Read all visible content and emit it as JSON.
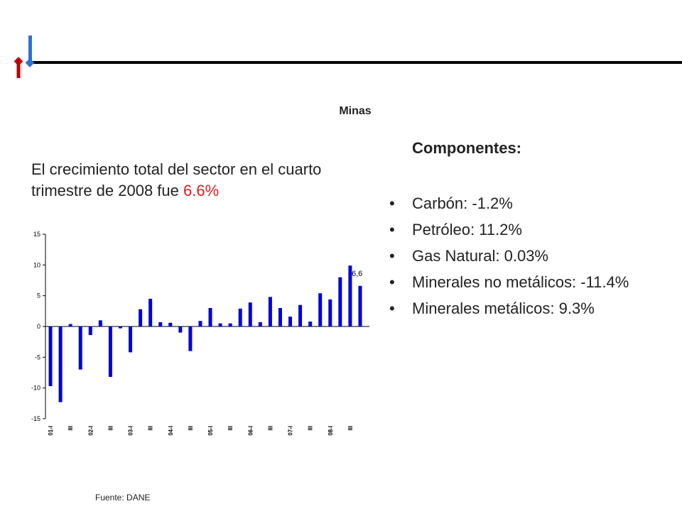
{
  "header": {
    "title": "Minas"
  },
  "headline": {
    "text": "El crecimiento total del sector en el cuarto trimestre de 2008 fue ",
    "value": "6.6%"
  },
  "components": {
    "title": "Componentes:",
    "items": [
      {
        "label": "Carbón: -1.2%"
      },
      {
        "label": "Petróleo: 11.2%"
      },
      {
        "label": "Gas Natural: 0.03%"
      },
      {
        "label": "Minerales no metálicos: -11.4%"
      },
      {
        "label": "Minerales metálicos: 9.3%"
      }
    ]
  },
  "source": "Fuente: DANE",
  "colors": {
    "bar": "#0000dd",
    "highlight": "#e11b1b",
    "logo_red": "#c00000",
    "logo_blue": "#2e6fd8"
  },
  "chart_data": {
    "type": "bar",
    "ylim": [
      -15,
      15
    ],
    "yticks": [
      15,
      10,
      5,
      0,
      -5,
      -10,
      -15
    ],
    "tick_labels": [
      "01-I",
      "III",
      "02-I",
      "III",
      "03-I",
      "III",
      "04-I",
      "III",
      "05-I",
      "III",
      "06-I",
      "III",
      "07-I",
      "III",
      "08-I",
      "III"
    ],
    "values": [
      -9.7,
      -12.3,
      0.4,
      -7.0,
      -1.4,
      1.0,
      -8.2,
      -0.3,
      -4.2,
      2.8,
      4.5,
      0.7,
      0.6,
      -1.0,
      -4.0,
      0.9,
      3.0,
      0.5,
      0.5,
      2.9,
      3.9,
      0.7,
      4.8,
      3.0,
      1.6,
      3.5,
      0.8,
      5.4,
      4.4,
      8.0,
      9.9,
      6.6
    ],
    "annotation": {
      "label": "6,6",
      "index": 31
    }
  }
}
